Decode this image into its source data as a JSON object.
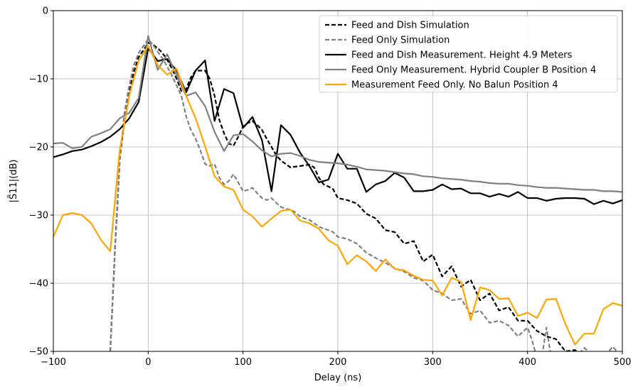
{
  "chart_data": {
    "type": "line",
    "xlabel": "Delay (ns)",
    "ylabel": "|S̃11|(dB)",
    "xlim": [
      -100,
      500
    ],
    "ylim": [
      -50,
      0
    ],
    "xticks": [
      -100,
      0,
      100,
      200,
      300,
      400,
      500
    ],
    "yticks": [
      0,
      -10,
      -20,
      -30,
      -40,
      -50
    ],
    "xtick_labels": [
      "−100",
      "0",
      "100",
      "200",
      "300",
      "400",
      "500"
    ],
    "ytick_labels": [
      "0",
      "−10",
      "−20",
      "−30",
      "−40",
      "−50"
    ],
    "grid": true,
    "legend_position": "top-right",
    "series": [
      {
        "name": "Feed and Dish Simulation",
        "color": "#000000",
        "dashed": true,
        "x": [
          -40,
          -35,
          -30,
          -25,
          -20,
          -15,
          -10,
          -5,
          0,
          5,
          10,
          15,
          20,
          25,
          30,
          35,
          40,
          45,
          50,
          55,
          60,
          65,
          70,
          75,
          80,
          85,
          90,
          95,
          100,
          105,
          110,
          115,
          120,
          125,
          130,
          135,
          140,
          145,
          150,
          155,
          160,
          165,
          170,
          175,
          180,
          185,
          190,
          195,
          200,
          210,
          220,
          230,
          240,
          250,
          260,
          270,
          280,
          290,
          300,
          310,
          320,
          330,
          340,
          350,
          360,
          370,
          380,
          390,
          400,
          410,
          420,
          430,
          440,
          450,
          460,
          470,
          480,
          490,
          500
        ],
        "y": [
          -50,
          -35,
          -22,
          -16,
          -12,
          -9,
          -6.8,
          -5.8,
          -4.7,
          -5.0,
          -5.5,
          -6.2,
          -7.2,
          -8.5,
          -10,
          -11.8,
          -11.5,
          -9.8,
          -8.8,
          -8.8,
          -8.8,
          -10,
          -12.5,
          -16,
          -18,
          -19.5,
          -19.8,
          -18.5,
          -17,
          -16.5,
          -16.2,
          -16.8,
          -17.5,
          -18.8,
          -20,
          -21.2,
          -22,
          -22.5,
          -23,
          -22.9,
          -22.8,
          -22.7,
          -22.6,
          -23,
          -24.5,
          -25.5,
          -25.8,
          -26.2,
          -27.5,
          -27.8,
          -28.3,
          -29.8,
          -30.5,
          -32.2,
          -32.5,
          -34.2,
          -33.8,
          -36.8,
          -35.8,
          -39,
          -37.5,
          -40.5,
          -39.5,
          -42.5,
          -41.5,
          -44,
          -43.5,
          -45.5,
          -45.5,
          -47,
          -47.8,
          -48.2,
          -50,
          -49.8,
          -50.5,
          -50.8,
          -50.5,
          -50.9,
          -51
        ]
      },
      {
        "name": "Feed Only Simulation",
        "color": "#808080",
        "dashed": true,
        "x": [
          -40,
          -35,
          -30,
          -25,
          -20,
          -15,
          -10,
          -5,
          0,
          5,
          10,
          15,
          20,
          25,
          30,
          35,
          40,
          45,
          50,
          55,
          60,
          65,
          70,
          75,
          80,
          85,
          90,
          95,
          100,
          105,
          110,
          115,
          120,
          125,
          130,
          135,
          140,
          145,
          150,
          155,
          160,
          165,
          170,
          175,
          180,
          185,
          190,
          195,
          200,
          210,
          220,
          230,
          240,
          250,
          260,
          270,
          280,
          290,
          300,
          310,
          320,
          330,
          340,
          350,
          360,
          370,
          380,
          390,
          400,
          405,
          410,
          415,
          420,
          425,
          430,
          440,
          450,
          460,
          470,
          480,
          490,
          500
        ],
        "y": [
          -50,
          -35,
          -22,
          -15,
          -11,
          -8,
          -6.2,
          -5.2,
          -4.2,
          -5.0,
          -6.0,
          -7.0,
          -8.2,
          -9.5,
          -11,
          -12.5,
          -15.5,
          -17.5,
          -18.8,
          -20.5,
          -22.5,
          -22.8,
          -22.5,
          -24.5,
          -25.5,
          -25,
          -24,
          -25.2,
          -26.5,
          -26.3,
          -26,
          -26.8,
          -27.5,
          -27.8,
          -27.5,
          -28.2,
          -28.8,
          -29.1,
          -29.2,
          -29.6,
          -30.2,
          -30.5,
          -30.7,
          -31.2,
          -31.7,
          -32,
          -32.2,
          -32.5,
          -33.2,
          -33.5,
          -34.2,
          -35.5,
          -36.3,
          -37,
          -37.8,
          -38.3,
          -39.2,
          -39.6,
          -41,
          -41.5,
          -42.5,
          -42.3,
          -44.5,
          -44,
          -45.8,
          -45.5,
          -46.2,
          -47.8,
          -46.5,
          -48.5,
          -51,
          -51,
          -46.5,
          -51,
          -51,
          -51,
          -51,
          -49.5,
          -50.8,
          -50.8,
          -49.3,
          -51
        ]
      },
      {
        "name": "Feed and Dish Measurement. Height 4.9 Meters",
        "color": "#000000",
        "dashed": false,
        "x": [
          -100,
          -90,
          -80,
          -70,
          -60,
          -50,
          -40,
          -30,
          -20,
          -10,
          0,
          10,
          20,
          30,
          40,
          50,
          60,
          70,
          80,
          90,
          100,
          110,
          120,
          130,
          140,
          150,
          160,
          170,
          180,
          190,
          200,
          210,
          220,
          230,
          240,
          250,
          260,
          270,
          280,
          290,
          300,
          310,
          320,
          330,
          340,
          350,
          360,
          370,
          380,
          390,
          400,
          410,
          420,
          430,
          440,
          450,
          460,
          470,
          480,
          490,
          500
        ],
        "y": [
          -21.5,
          -21.1,
          -20.6,
          -20.4,
          -19.9,
          -19.3,
          -18.5,
          -17.4,
          -15.8,
          -13.4,
          -5.5,
          -7.4,
          -7.1,
          -8.8,
          -12,
          -8.8,
          -7.3,
          -16.2,
          -11.5,
          -12.1,
          -17.2,
          -15.6,
          -19,
          -26.5,
          -16.8,
          -18.2,
          -20.8,
          -22.8,
          -25.2,
          -24.8,
          -21,
          -23.2,
          -23.2,
          -26.6,
          -25.5,
          -25,
          -23.8,
          -24.5,
          -26.5,
          -26.5,
          -26.3,
          -25.5,
          -26.2,
          -26.1,
          -26.8,
          -26.8,
          -27.3,
          -26.9,
          -27.3,
          -26.6,
          -27.5,
          -27.5,
          -27.9,
          -27.6,
          -27.5,
          -27.5,
          -27.6,
          -28.4,
          -27.9,
          -28.3,
          -27.8
        ]
      },
      {
        "name": "Feed Only Measurement. Hybrid Coupler B Position 4",
        "color": "#808080",
        "dashed": false,
        "x": [
          -100,
          -90,
          -80,
          -70,
          -60,
          -50,
          -40,
          -30,
          -20,
          -10,
          0,
          10,
          20,
          30,
          40,
          50,
          60,
          70,
          80,
          90,
          100,
          110,
          120,
          130,
          140,
          150,
          160,
          170,
          180,
          190,
          200,
          210,
          220,
          230,
          240,
          250,
          260,
          270,
          280,
          290,
          300,
          310,
          320,
          330,
          340,
          350,
          360,
          370,
          380,
          390,
          400,
          410,
          420,
          430,
          440,
          450,
          460,
          470,
          480,
          490,
          500
        ],
        "y": [
          -19.5,
          -19.4,
          -20.2,
          -20,
          -18.5,
          -18,
          -17.4,
          -15.8,
          -15,
          -12.8,
          -3.7,
          -8.7,
          -6.4,
          -9.5,
          -12.5,
          -12,
          -14,
          -17.8,
          -20.6,
          -18.3,
          -18.1,
          -19.2,
          -20.5,
          -21.4,
          -21,
          -20.9,
          -21.3,
          -21.9,
          -22.2,
          -22.3,
          -22.4,
          -22.6,
          -22.9,
          -23.3,
          -23.4,
          -23.5,
          -23.7,
          -23.9,
          -24,
          -24.3,
          -24.4,
          -24.6,
          -24.7,
          -24.8,
          -25,
          -25.1,
          -25.3,
          -25.4,
          -25.4,
          -25.6,
          -25.7,
          -25.9,
          -26,
          -26,
          -26.1,
          -26.2,
          -26.3,
          -26.3,
          -26.5,
          -26.5,
          -26.6
        ]
      },
      {
        "name": "Measurement Feed Only. No Balun Position 4",
        "color": "#ffa500",
        "dashed": false,
        "x": [
          -100,
          -90,
          -80,
          -70,
          -60,
          -50,
          -40,
          -30,
          -20,
          -10,
          0,
          10,
          20,
          30,
          40,
          50,
          60,
          70,
          80,
          90,
          100,
          110,
          120,
          130,
          140,
          150,
          160,
          170,
          180,
          190,
          200,
          210,
          220,
          230,
          240,
          250,
          260,
          270,
          280,
          290,
          300,
          310,
          320,
          330,
          340,
          350,
          360,
          370,
          380,
          390,
          400,
          410,
          420,
          430,
          440,
          450,
          460,
          470,
          480,
          490,
          500
        ],
        "y": [
          -33.2,
          -30,
          -29.7,
          -30,
          -31.2,
          -33.6,
          -35.3,
          -20.5,
          -12.5,
          -7.3,
          -5.2,
          -8,
          -9.4,
          -8.5,
          -12.5,
          -15.8,
          -19.9,
          -24.3,
          -25.8,
          -26.3,
          -29.2,
          -30.2,
          -31.7,
          -30.5,
          -29.4,
          -29.2,
          -30.8,
          -31.2,
          -32,
          -33.7,
          -34.5,
          -37.2,
          -35.9,
          -36.8,
          -38.2,
          -36.5,
          -37.9,
          -38.1,
          -38.9,
          -39.5,
          -39.6,
          -41.8,
          -39.2,
          -39.8,
          -45.4,
          -40.6,
          -41,
          -42.3,
          -42.2,
          -44.8,
          -44.3,
          -45.1,
          -42.4,
          -42.3,
          -46,
          -49,
          -47.4,
          -47.4,
          -43.8,
          -42.9,
          -43.3
        ]
      }
    ]
  }
}
